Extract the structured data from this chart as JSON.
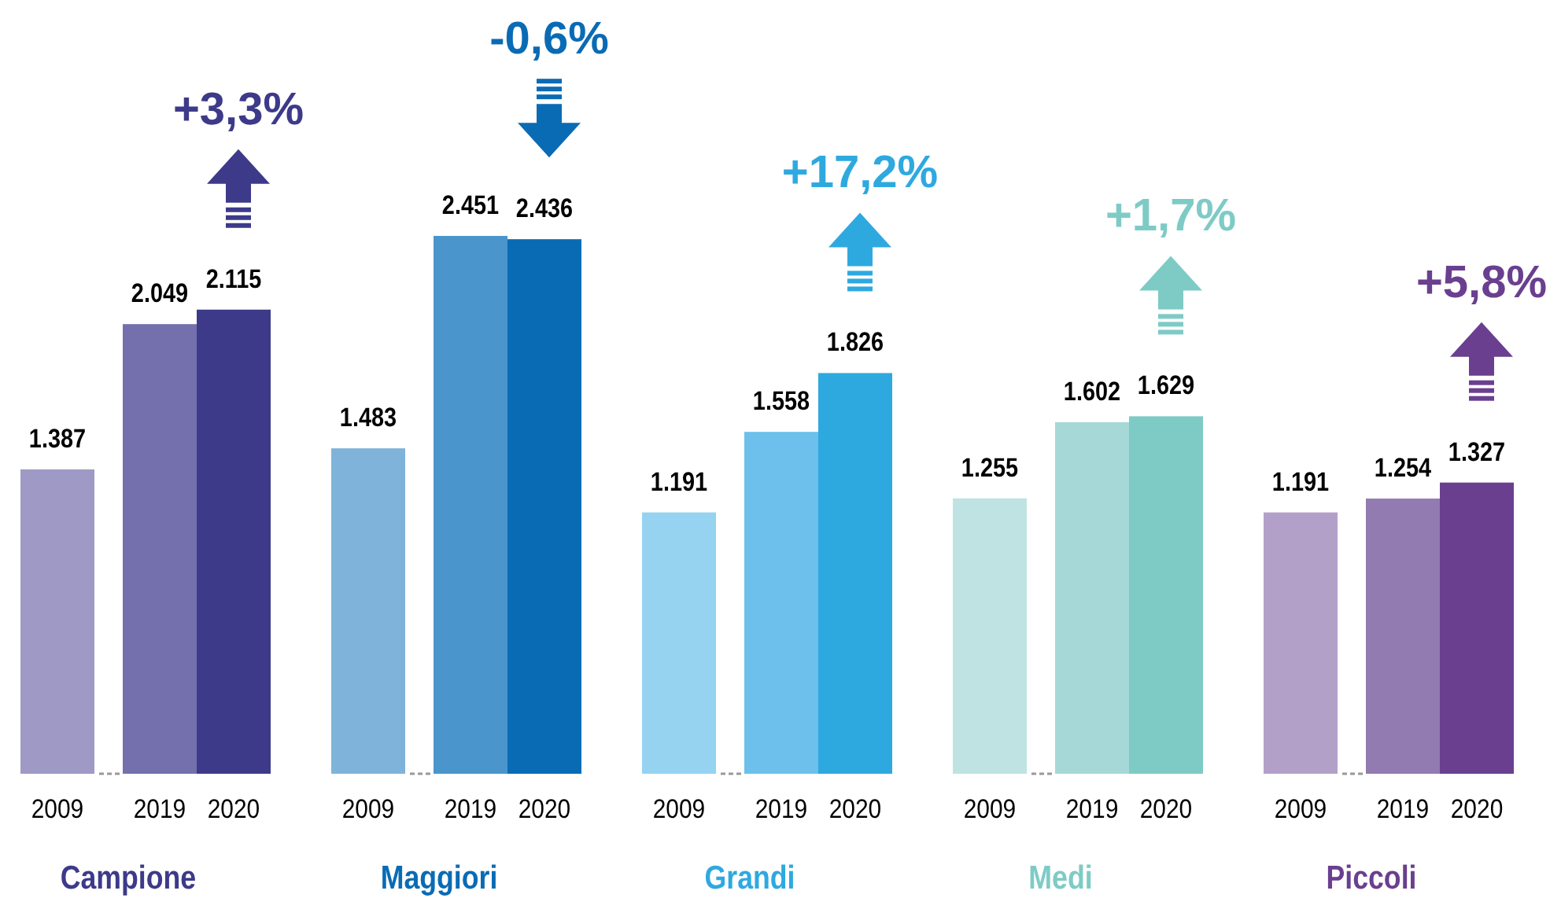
{
  "chart_data": {
    "type": "bar",
    "categories": [
      "Campione",
      "Maggiori",
      "Grandi",
      "Medi",
      "Piccoli"
    ],
    "series": [
      {
        "name": "2009",
        "colors": [
          "#9f99c6",
          "#80b3d9",
          "#95d3f0",
          "#bfe3e2",
          "#b3a0c8"
        ],
        "values": [
          1387,
          1483,
          1191,
          1255,
          1191
        ],
        "value_labels": [
          "1.387",
          "1.483",
          "1.191",
          "1.255",
          "1.191"
        ]
      },
      {
        "name": "2019",
        "colors": [
          "#7470ae",
          "#4a95cc",
          "#6cc0eb",
          "#a5d8d6",
          "#927bb0"
        ],
        "values": [
          2049,
          2451,
          1558,
          1602,
          1254
        ],
        "value_labels": [
          "2.049",
          "2.451",
          "1.558",
          "1.602",
          "1.254"
        ]
      },
      {
        "name": "2020",
        "colors": [
          "#3d3a8a",
          "#0a6bb5",
          "#2ea9e0",
          "#7ecbc6",
          "#6a3f8f"
        ],
        "values": [
          2115,
          2436,
          1826,
          1629,
          1327
        ],
        "value_labels": [
          "2.115",
          "2.436",
          "1.826",
          "1.629",
          "1.327"
        ]
      }
    ],
    "annotations": [
      "+3,3%",
      "-0,6%",
      "+17,2%",
      "+1,7%",
      "+5,8%"
    ]
  }
}
